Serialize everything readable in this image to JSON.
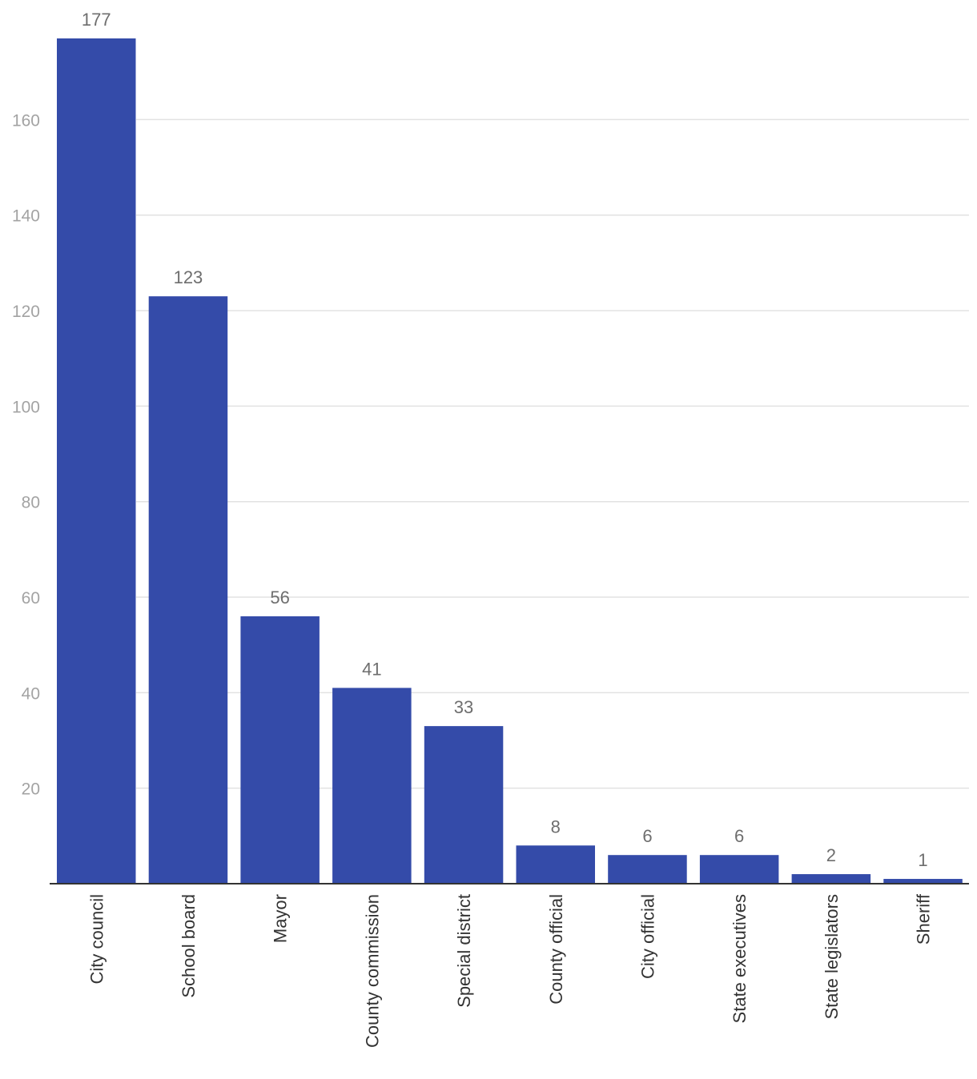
{
  "chart_data": {
    "type": "bar",
    "title": "",
    "xlabel": "",
    "ylabel": "",
    "categories": [
      "City council",
      "School board",
      "Mayor",
      "County commission",
      "Special district",
      "County official",
      "City official",
      "State executives",
      "State legislators",
      "Sheriff"
    ],
    "values": [
      177,
      123,
      56,
      41,
      33,
      8,
      6,
      6,
      2,
      1
    ],
    "data_labels": [
      "177",
      "123",
      "56",
      "41",
      "33",
      "8",
      "6",
      "6",
      "2",
      "1"
    ],
    "ylim": [
      0,
      177
    ],
    "yticks": [
      20,
      40,
      60,
      80,
      100,
      120,
      140,
      160
    ],
    "grid": true,
    "legend": "none",
    "bar_color": "#344ba9",
    "grid_color": "#e2e2e2",
    "axis_color": "#333333",
    "tick_label_color": "#a3a3a3",
    "data_label_color": "#6e6e6e",
    "x_tick_rotation": "vertical"
  }
}
